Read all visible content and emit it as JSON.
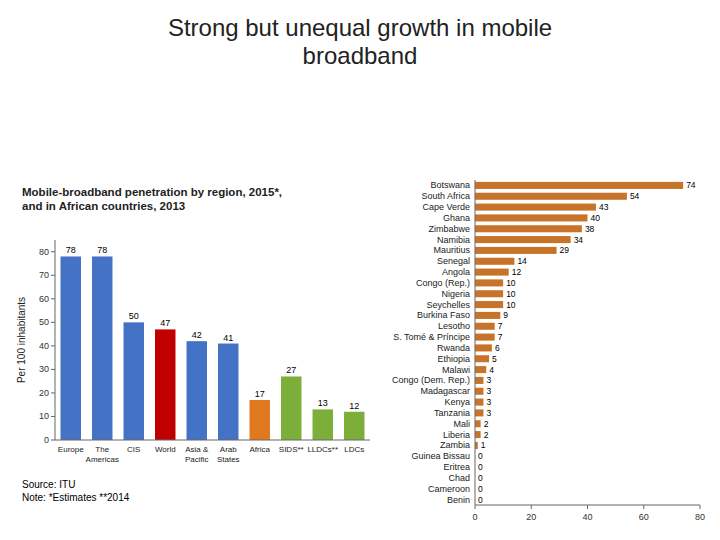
{
  "chart_data": [
    {
      "type": "bar",
      "title": "Strong but unequal growth in mobile\nbroadband",
      "subtitle": "Mobile-broadband penetration by region, 2015*,\nand in African countries, 2013",
      "annotations": [
        "Source: ITU\nNote: *Estimates **2014"
      ],
      "y_label": "Per 100 inhabitants",
      "categories": [
        "Europe",
        "The\nAmericas",
        "CIS",
        "World",
        "Asia &\nPacific",
        "Arab\nStates",
        "Africa",
        "SIDS**",
        "LLDCs**",
        "LDCs"
      ],
      "values": [
        78,
        78,
        50,
        47,
        42,
        41,
        17,
        27,
        13,
        12
      ],
      "colors": [
        "#4472C4",
        "#4472C4",
        "#4472C4",
        "#C00000",
        "#4472C4",
        "#4472C4",
        "#E07820",
        "#7CAF3A",
        "#7CAF3A",
        "#7CAF3A"
      ],
      "ylim": [
        0,
        85
      ],
      "yticks": [
        0,
        10,
        20,
        30,
        40,
        50,
        60,
        70,
        80
      ],
      "data_labels": true,
      "grid": false
    },
    {
      "type": "bar",
      "orientation": "horizontal",
      "categories": [
        "Botswana",
        "South Africa",
        "Cape Verde",
        "Ghana",
        "Zimbabwe",
        "Namibia",
        "Mauritius",
        "Senegal",
        "Angola",
        "Congo (Rep.)",
        "Nigeria",
        "Seychelles",
        "Burkina Faso",
        "Lesotho",
        "S. Tomé & Príncipe",
        "Rwanda",
        "Ethiopia",
        "Malawi",
        "Congo (Dem. Rep.)",
        "Madagascar",
        "Kenya",
        "Tanzania",
        "Mali",
        "Liberia",
        "Zambia",
        "Guinea Bissau",
        "Eritrea",
        "Chad",
        "Cameroon",
        "Benin"
      ],
      "values": [
        74,
        54,
        43,
        40,
        38,
        34,
        29,
        14,
        12,
        10,
        10,
        10,
        9,
        7,
        7,
        6,
        5,
        4,
        3,
        3,
        3,
        3,
        2,
        2,
        1,
        0,
        0,
        0,
        0,
        0
      ],
      "color": "#C8732A",
      "xlim": [
        0,
        80
      ],
      "xticks": [
        0,
        20,
        40,
        60,
        80
      ],
      "data_labels": true,
      "grid": false
    }
  ]
}
